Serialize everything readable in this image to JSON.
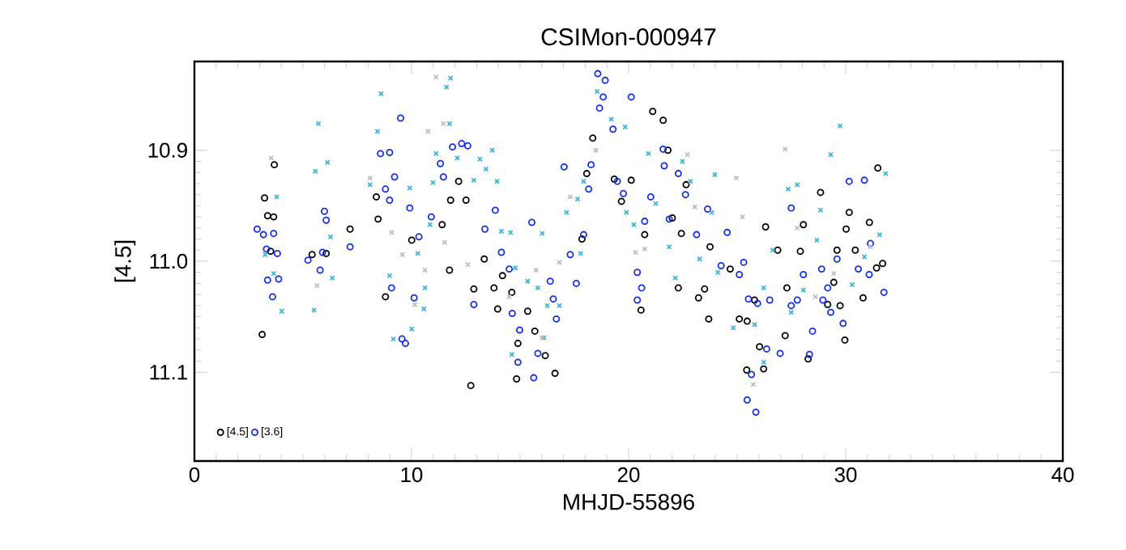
{
  "chart_data": {
    "type": "scatter",
    "title": "CSIMon-000947",
    "xlabel": "MHJD-55896",
    "ylabel": "[4.5]",
    "xlim": [
      0,
      40
    ],
    "xticks": [
      0,
      10,
      20,
      30,
      40
    ],
    "ylim": [
      11.18,
      10.82
    ],
    "yticks": [
      10.9,
      {
        "value": 11.0,
        "label": "11.0"
      },
      11.1
    ],
    "legend": "bottom left",
    "grid": false,
    "series": [
      {
        "name": "[4.5]",
        "color": "#000000",
        "marker": "circle",
        "x": [
          3.12,
          3.23,
          3.37,
          3.65,
          3.51,
          3.68,
          5.42,
          6.07,
          7.17,
          8.38,
          8.46,
          8.8,
          10.01,
          11.75,
          12.17,
          11.8,
          12.51,
          11.41,
          12.73,
          12.87,
          13.35,
          13.8,
          13.97,
          14.19,
          14.62,
          14.9,
          14.84,
          15.35,
          15.68,
          16.16,
          16.61,
          18.07,
          18.35,
          17.85,
          19.34,
          19.67,
          20.12,
          20.57,
          20.74,
          21.11,
          21.59,
          21.81,
          22.01,
          22.43,
          22.29,
          22.65,
          23.22,
          23.5,
          23.75,
          23.69,
          24.68,
          25.1,
          25.46,
          25.8,
          25.44,
          26.03,
          26.22,
          26.31,
          26.87,
          27.21,
          27.29,
          27.91,
          28.05,
          28.27,
          28.84,
          29.17,
          29.45,
          29.6,
          29.74,
          29.96,
          30.02,
          30.16,
          30.44,
          30.8,
          31.09,
          31.48,
          31.42,
          31.7
        ],
        "values": [
          11.066,
          10.943,
          10.959,
          10.96,
          10.991,
          10.913,
          10.994,
          10.993,
          10.971,
          10.942,
          10.962,
          11.032,
          10.981,
          11.008,
          10.928,
          10.945,
          10.945,
          10.967,
          11.112,
          11.025,
          10.998,
          11.024,
          11.043,
          11.013,
          11.028,
          11.074,
          11.106,
          11.045,
          11.063,
          11.085,
          11.101,
          10.921,
          10.889,
          10.98,
          10.926,
          10.946,
          10.927,
          11.044,
          10.976,
          10.865,
          10.873,
          10.9,
          10.961,
          10.975,
          11.024,
          10.931,
          11.033,
          11.025,
          10.987,
          11.052,
          11.007,
          11.052,
          11.054,
          11.035,
          11.098,
          11.077,
          11.097,
          10.969,
          10.99,
          11.067,
          11.024,
          10.991,
          10.967,
          11.088,
          10.938,
          11.039,
          11.019,
          10.99,
          11.04,
          11.071,
          10.971,
          10.956,
          10.99,
          11.033,
          10.965,
          10.916,
          11.006,
          11.002
        ]
      },
      {
        "name": "[3.6]",
        "color": "#1430e6",
        "marker": "circle",
        "x": [
          2.89,
          3.18,
          3.65,
          3.32,
          3.82,
          3.37,
          3.88,
          3.6,
          5.23,
          5.79,
          5.99,
          6.07,
          5.9,
          7.17,
          8.99,
          8.57,
          8.8,
          8.99,
          9.22,
          9.5,
          9.08,
          9.56,
          9.72,
          9.92,
          10.12,
          10.34,
          10.91,
          11.33,
          11.47,
          11.89,
          12.31,
          12.59,
          12.87,
          13.38,
          13.86,
          14.14,
          14.5,
          14.64,
          14.98,
          14.9,
          15.54,
          15.63,
          15.82,
          16.39,
          16.53,
          16.67,
          17.03,
          17.31,
          17.59,
          17.93,
          18.16,
          18.27,
          18.58,
          18.92,
          18.66,
          18.83,
          19.28,
          20.12,
          19.48,
          19.76,
          20.4,
          20.6,
          20.4,
          20.74,
          21.02,
          21.59,
          21.64,
          21.87,
          22.29,
          22.62,
          23.13,
          23.64,
          24.54,
          24.26,
          25.1,
          25.52,
          25.94,
          26.36,
          26.98,
          25.3,
          25.66,
          25.46,
          25.86,
          26.5,
          27.49,
          27.77,
          28.05,
          28.33,
          28.47,
          28.89,
          29.17,
          29.31,
          29.6,
          29.88,
          30.16,
          30.58,
          30.86,
          31.08,
          31.14,
          31.76,
          27.49,
          28.95
        ],
        "values": [
          10.971,
          10.976,
          10.975,
          10.989,
          10.993,
          11.017,
          11.016,
          11.032,
          10.999,
          11.008,
          10.955,
          10.963,
          10.992,
          10.987,
          10.902,
          10.903,
          10.935,
          10.945,
          10.924,
          10.871,
          11.024,
          11.07,
          11.074,
          10.952,
          11.033,
          10.978,
          10.96,
          10.912,
          10.924,
          10.897,
          10.894,
          10.896,
          11.039,
          10.971,
          10.954,
          10.992,
          11.007,
          11.047,
          11.062,
          11.091,
          10.965,
          11.105,
          11.083,
          11.018,
          11.034,
          11.052,
          10.915,
          10.994,
          11.02,
          10.976,
          10.935,
          10.913,
          10.831,
          10.837,
          10.862,
          10.852,
          10.881,
          10.852,
          10.928,
          10.939,
          11.01,
          11.024,
          11.035,
          10.964,
          10.942,
          10.899,
          10.914,
          10.962,
          10.921,
          10.94,
          10.976,
          10.953,
          10.974,
          11.004,
          11.012,
          11.034,
          11.038,
          11.079,
          11.083,
          11.001,
          11.102,
          11.125,
          11.136,
          11.035,
          10.952,
          11.035,
          11.012,
          11.084,
          11.063,
          11.007,
          11.024,
          11.046,
          10.998,
          11.056,
          10.928,
          11.007,
          10.927,
          11.012,
          10.984,
          11.028,
          11.04,
          11.035
        ]
      },
      {
        "color": "#3cb4d8",
        "marker": "cross",
        "x": [
          4.02,
          3.79,
          3.65,
          3.26,
          5.51,
          5.71,
          5.57,
          6.13,
          6.27,
          6.35,
          8.43,
          8.6,
          8.09,
          8.99,
          9.16,
          10.01,
          9.92,
          10.29,
          10.62,
          10.57,
          10.85,
          10.99,
          11.13,
          11.61,
          11.8,
          11.75,
          12.11,
          12.87,
          13.15,
          13.43,
          13.72,
          13.94,
          14.14,
          14.56,
          14.78,
          15.35,
          15.82,
          16.02,
          16.25,
          16.1,
          14.62,
          16.81,
          17.14,
          17.65,
          17.79,
          17.93,
          18.55,
          19.2,
          19.84,
          19.9,
          20.24,
          20.91,
          21.25,
          21.87,
          22.15,
          22.48,
          22.85,
          23.27,
          23.83,
          23.97,
          24.11,
          24.82,
          25.8,
          26.22,
          26.64,
          27.35,
          27.49,
          27.77,
          28.05,
          28.67,
          28.84,
          29.31,
          29.74,
          30.3,
          30.86,
          31.56,
          31.84,
          26.22
        ],
        "values": [
          11.045,
          10.942,
          11.011,
          10.994,
          11.044,
          10.876,
          10.919,
          10.911,
          10.978,
          11.015,
          10.883,
          10.849,
          10.931,
          11.013,
          11.07,
          11.061,
          10.934,
          10.993,
          11.024,
          11.043,
          10.967,
          10.929,
          10.903,
          10.843,
          10.835,
          10.876,
          10.907,
          10.927,
          10.908,
          10.917,
          10.9,
          10.928,
          10.973,
          10.974,
          11.006,
          11.018,
          11.024,
          10.975,
          11.04,
          11.069,
          11.084,
          11.04,
          10.956,
          10.944,
          10.993,
          10.928,
          10.847,
          10.872,
          10.879,
          10.956,
          10.967,
          10.903,
          10.948,
          10.987,
          11.015,
          10.91,
          10.928,
          10.998,
          10.956,
          10.922,
          11.01,
          11.06,
          11.057,
          11.024,
          10.99,
          10.935,
          11.046,
          10.931,
          11.026,
          10.981,
          10.954,
          10.904,
          10.878,
          11.021,
          10.996,
          10.976,
          10.921,
          11.091
        ]
      },
      {
        "color": "#bdbdbd",
        "marker": "cross",
        "x": [
          3.54,
          5.65,
          8.09,
          9.08,
          9.58,
          10.15,
          10.62,
          10.76,
          11.13,
          11.47,
          11.52,
          12.59,
          14.5,
          15.74,
          16.02,
          16.81,
          17.31,
          18.49,
          20.32,
          20.74,
          22.71,
          23.05,
          24.96,
          25.24,
          27.21,
          27.77,
          25.74,
          28.61,
          31.14,
          29.45
        ],
        "values": [
          10.907,
          11.022,
          10.925,
          10.974,
          10.994,
          11.039,
          11.008,
          10.883,
          10.834,
          10.876,
          10.983,
          11.003,
          11.032,
          11.008,
          11.069,
          11.001,
          10.942,
          10.9,
          10.992,
          10.989,
          10.904,
          10.951,
          10.925,
          10.96,
          10.899,
          10.97,
          11.111,
          11.032,
          10.987,
          11.011
        ]
      }
    ]
  }
}
